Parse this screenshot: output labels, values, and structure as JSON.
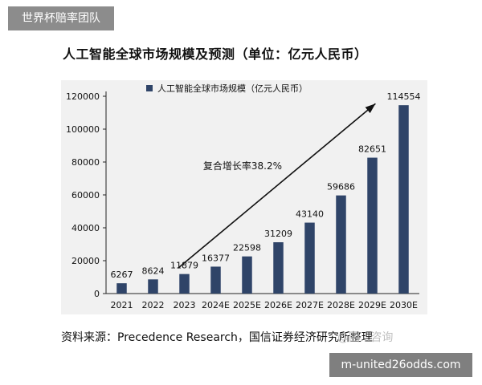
{
  "header": {
    "badge": "世界杯赔率团队"
  },
  "title": "人工智能全球市场规模及预测（单位：亿元人民币）",
  "source": "资料来源：Precedence Research，国信证券经济研究所整理",
  "watermark": "@国...咨询",
  "footer": {
    "badge": "m-united26odds.com"
  },
  "chart_data": {
    "type": "bar",
    "title": "人工智能全球市场规模及预测（单位：亿元人民币）",
    "categories": [
      "2021",
      "2022",
      "2023",
      "2024E",
      "2025E",
      "2026E",
      "2027E",
      "2028E",
      "2029E",
      "2030E"
    ],
    "series": [
      {
        "name": "人工智能全球市场规模（亿元人民币）",
        "values": [
          6267,
          8624,
          11879,
          16377,
          22598,
          31209,
          43140,
          59686,
          82651,
          114554
        ]
      }
    ],
    "ylim": [
      0,
      120000
    ],
    "yticks": [
      0,
      20000,
      40000,
      60000,
      80000,
      100000,
      120000
    ],
    "annotation": "复合增长率38.2%",
    "legend_position": "top-left",
    "grid": false,
    "bar_color": "#2f4468"
  }
}
